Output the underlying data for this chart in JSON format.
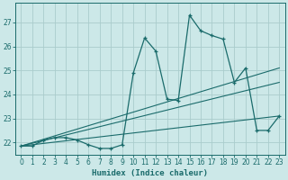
{
  "xlabel": "Humidex (Indice chaleur)",
  "xlim": [
    -0.5,
    23.5
  ],
  "ylim": [
    21.5,
    27.8
  ],
  "yticks": [
    22,
    23,
    24,
    25,
    26,
    27
  ],
  "xticks": [
    0,
    1,
    2,
    3,
    4,
    5,
    6,
    7,
    8,
    9,
    10,
    11,
    12,
    13,
    14,
    15,
    16,
    17,
    18,
    19,
    20,
    21,
    22,
    23
  ],
  "bg_color": "#cce8e8",
  "grid_color": "#aacccc",
  "line_color": "#1a6b6b",
  "main_line": {
    "x": [
      0,
      1,
      2,
      3,
      4,
      5,
      6,
      7,
      8,
      9,
      10,
      11,
      12,
      13,
      14,
      15,
      16,
      17,
      18,
      19,
      20,
      21,
      22,
      23
    ],
    "y": [
      21.85,
      21.85,
      22.1,
      22.2,
      22.2,
      22.1,
      21.9,
      21.75,
      21.75,
      21.9,
      24.9,
      26.35,
      25.8,
      23.8,
      23.75,
      27.3,
      26.65,
      26.45,
      26.3,
      24.5,
      25.1,
      22.5,
      22.5,
      23.1
    ]
  },
  "ref_lines": [
    {
      "x": [
        0,
        23
      ],
      "y": [
        21.85,
        25.1
      ]
    },
    {
      "x": [
        0,
        23
      ],
      "y": [
        21.85,
        24.5
      ]
    },
    {
      "x": [
        0,
        23
      ],
      "y": [
        21.85,
        23.1
      ]
    }
  ]
}
